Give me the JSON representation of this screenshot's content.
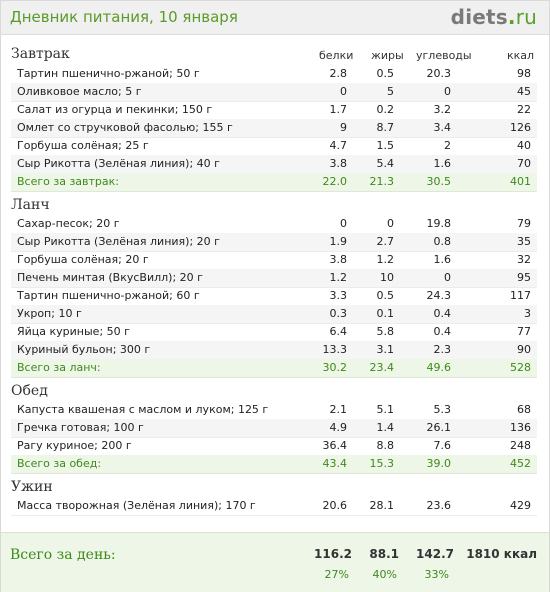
{
  "header": {
    "title": "Дневник питания, 10 января",
    "logo_main": "diets",
    "logo_dot": ".",
    "logo_tld": "ru"
  },
  "columns": {
    "proteins": "белки",
    "fats": "жиры",
    "carbs": "углеводы",
    "kcal": "ккал"
  },
  "sections": [
    {
      "title": "Завтрак",
      "items": [
        {
          "name": "Тартин пшенично-ржаной; 50 г",
          "p": "2.8",
          "f": "0.5",
          "c": "20.3",
          "k": "98"
        },
        {
          "name": "Оливковое масло; 5 г",
          "p": "0",
          "f": "5",
          "c": "0",
          "k": "45"
        },
        {
          "name": "Салат из огурца и пекинки; 150 г",
          "p": "1.7",
          "f": "0.2",
          "c": "3.2",
          "k": "22"
        },
        {
          "name": "Омлет со стручковой фасолью; 155 г",
          "p": "9",
          "f": "8.7",
          "c": "3.4",
          "k": "126"
        },
        {
          "name": "Горбуша солёная; 25 г",
          "p": "4.7",
          "f": "1.5",
          "c": "2",
          "k": "40"
        },
        {
          "name": "Сыр Рикотта (Зелёная линия); 40 г",
          "p": "3.8",
          "f": "5.4",
          "c": "1.6",
          "k": "70"
        }
      ],
      "total": {
        "label": "Всего за завтрак:",
        "p": "22.0",
        "f": "21.3",
        "c": "30.5",
        "k": "401"
      }
    },
    {
      "title": "Ланч",
      "items": [
        {
          "name": "Сахар-песок; 20 г",
          "p": "0",
          "f": "0",
          "c": "19.8",
          "k": "79"
        },
        {
          "name": "Сыр Рикотта (Зелёная линия); 20 г",
          "p": "1.9",
          "f": "2.7",
          "c": "0.8",
          "k": "35"
        },
        {
          "name": "Горбуша солёная; 20 г",
          "p": "3.8",
          "f": "1.2",
          "c": "1.6",
          "k": "32"
        },
        {
          "name": "Печень минтая (ВкусВилл); 20 г",
          "p": "1.2",
          "f": "10",
          "c": "0",
          "k": "95"
        },
        {
          "name": "Тартин пшенично-ржаной; 60 г",
          "p": "3.3",
          "f": "0.5",
          "c": "24.3",
          "k": "117"
        },
        {
          "name": "Укроп; 10 г",
          "p": "0.3",
          "f": "0.1",
          "c": "0.4",
          "k": "3"
        },
        {
          "name": "Яйца куриные; 50 г",
          "p": "6.4",
          "f": "5.8",
          "c": "0.4",
          "k": "77"
        },
        {
          "name": "Куриный бульон; 300 г",
          "p": "13.3",
          "f": "3.1",
          "c": "2.3",
          "k": "90"
        }
      ],
      "total": {
        "label": "Всего за ланч:",
        "p": "30.2",
        "f": "23.4",
        "c": "49.6",
        "k": "528"
      }
    },
    {
      "title": "Обед",
      "items": [
        {
          "name": "Капуста квашеная с маслом и луком; 125 г",
          "p": "2.1",
          "f": "5.1",
          "c": "5.3",
          "k": "68"
        },
        {
          "name": "Гречка готовая; 100 г",
          "p": "4.9",
          "f": "1.4",
          "c": "26.1",
          "k": "136"
        },
        {
          "name": "Рагу куриное; 200 г",
          "p": "36.4",
          "f": "8.8",
          "c": "7.6",
          "k": "248"
        }
      ],
      "total": {
        "label": "Всего за обед:",
        "p": "43.4",
        "f": "15.3",
        "c": "39.0",
        "k": "452"
      }
    },
    {
      "title": "Ужин",
      "items": [
        {
          "name": "Масса творожная (Зелёная линия); 170 г",
          "p": "20.6",
          "f": "28.1",
          "c": "23.6",
          "k": "429"
        }
      ]
    }
  ],
  "day_total": {
    "label": "Всего за день:",
    "p": "116.2",
    "f": "88.1",
    "c": "142.7",
    "k": "1810 ккал",
    "p_pct": "27%",
    "f_pct": "40%",
    "c_pct": "33%"
  },
  "colors": {
    "accent_green": "#3d8a1a",
    "title_green": "#5a9a2a",
    "total_bg": "#eef6e8"
  }
}
